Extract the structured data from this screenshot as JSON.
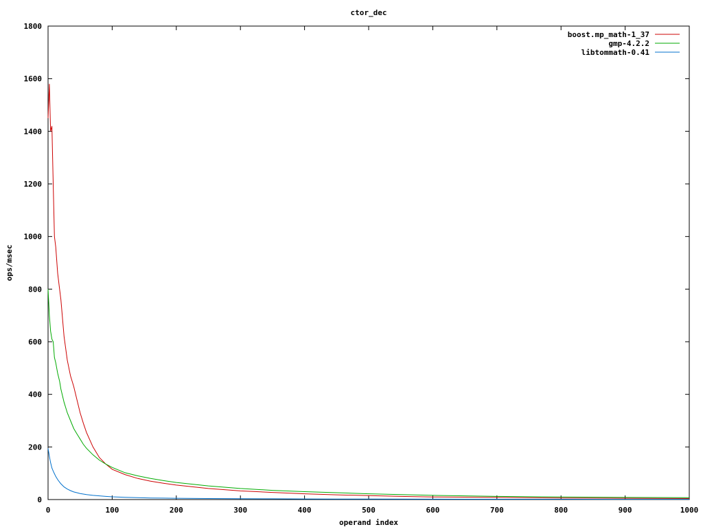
{
  "chart_data": {
    "type": "line",
    "title": "ctor_dec",
    "xlabel": "operand index",
    "ylabel": "ops/msec",
    "xlim": [
      0,
      1000
    ],
    "ylim": [
      0,
      1800
    ],
    "xticks": [
      0,
      100,
      200,
      300,
      400,
      500,
      600,
      700,
      800,
      900,
      1000
    ],
    "yticks": [
      0,
      200,
      400,
      600,
      800,
      1000,
      1200,
      1400,
      1600,
      1800
    ],
    "grid": false,
    "legend_position": "top-right",
    "series": [
      {
        "name": "boost.mp_math-1_37",
        "color": "#cc0000",
        "x": [
          0,
          2,
          4,
          6,
          8,
          10,
          12,
          15,
          18,
          20,
          25,
          30,
          35,
          40,
          45,
          50,
          55,
          60,
          70,
          80,
          90,
          100,
          120,
          140,
          160,
          180,
          200,
          250,
          300,
          350,
          400,
          450,
          500,
          550,
          600,
          650,
          700,
          800,
          900,
          1000
        ],
        "y": [
          1450,
          1580,
          1400,
          1420,
          1200,
          1000,
          960,
          860,
          800,
          760,
          620,
          530,
          470,
          430,
          380,
          330,
          290,
          255,
          200,
          160,
          135,
          115,
          95,
          80,
          70,
          62,
          55,
          42,
          33,
          27,
          22,
          18,
          15,
          12,
          10,
          9,
          8,
          6,
          5,
          4
        ]
      },
      {
        "name": "gmp-4.2.2",
        "color": "#00aa00",
        "x": [
          0,
          2,
          4,
          6,
          8,
          10,
          12,
          15,
          18,
          20,
          25,
          30,
          35,
          40,
          45,
          50,
          55,
          60,
          70,
          80,
          90,
          100,
          120,
          140,
          160,
          180,
          200,
          250,
          300,
          350,
          400,
          450,
          500,
          550,
          600,
          650,
          700,
          800,
          900,
          1000
        ],
        "y": [
          800,
          700,
          640,
          610,
          600,
          540,
          520,
          480,
          450,
          420,
          370,
          330,
          300,
          270,
          250,
          230,
          210,
          195,
          170,
          150,
          135,
          122,
          102,
          90,
          80,
          72,
          65,
          52,
          42,
          35,
          30,
          26,
          22,
          19,
          16,
          14,
          12,
          10,
          8,
          7
        ]
      },
      {
        "name": "libtommath-0.41",
        "color": "#0070cc",
        "x": [
          0,
          2,
          4,
          6,
          8,
          10,
          12,
          15,
          18,
          20,
          25,
          30,
          35,
          40,
          45,
          50,
          60,
          70,
          80,
          90,
          100,
          120,
          140,
          160,
          180,
          200,
          250,
          300,
          350,
          400,
          450,
          500,
          600,
          700,
          800,
          900,
          1000
        ],
        "y": [
          195,
          165,
          140,
          120,
          108,
          98,
          88,
          76,
          66,
          60,
          48,
          40,
          34,
          29,
          26,
          23,
          19,
          16,
          14,
          12,
          10.5,
          8.5,
          7,
          6,
          5.5,
          5,
          4,
          3.2,
          2.8,
          2.4,
          2.1,
          1.9,
          1.6,
          1.4,
          1.2,
          1.1,
          1
        ]
      }
    ]
  }
}
